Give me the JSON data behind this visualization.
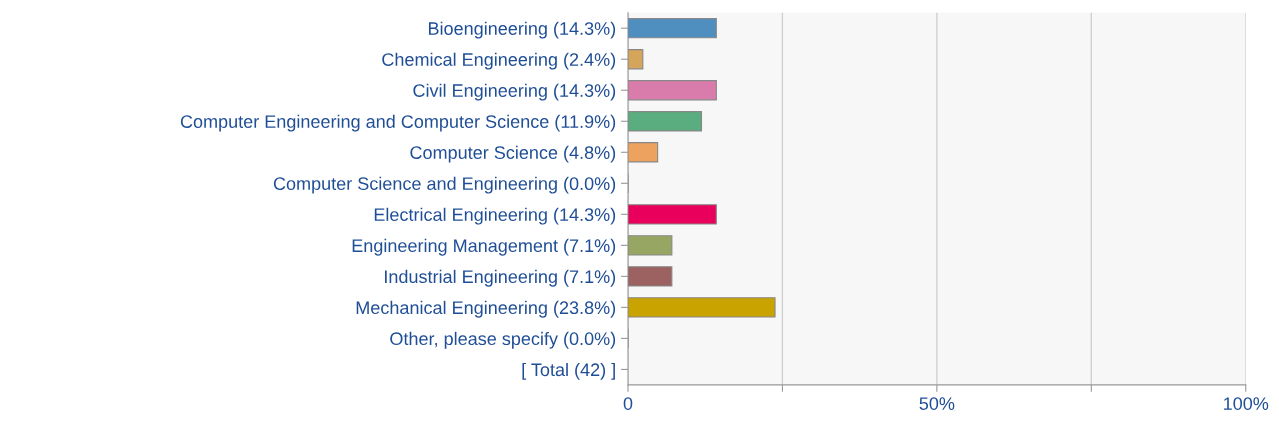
{
  "chart_data": {
    "type": "bar",
    "orientation": "horizontal",
    "categories": [
      "Bioengineering (14.3%)",
      "Chemical Engineering (2.4%)",
      "Civil Engineering (14.3%)",
      "Computer Engineering and Computer Science (11.9%)",
      "Computer Science (4.8%)",
      "Computer Science and Engineering (0.0%)",
      "Electrical Engineering (14.3%)",
      "Engineering Management (7.1%)",
      "Industrial Engineering (7.1%)",
      "Mechanical Engineering (23.8%)",
      "Other, please specify (0.0%)",
      "[ Total (42) ]"
    ],
    "values": [
      14.3,
      2.4,
      14.3,
      11.9,
      4.8,
      0.0,
      14.3,
      7.1,
      7.1,
      23.8,
      0.0,
      null
    ],
    "colors": [
      "#4f8fc0",
      "#d4a55a",
      "#d97cab",
      "#5aad7e",
      "#eda25f",
      null,
      "#e8005c",
      "#97a763",
      "#9c6262",
      "#c9a300",
      null,
      null
    ],
    "xlim": [
      0,
      100
    ],
    "xticks": [
      {
        "value": 0,
        "label": "0"
      },
      {
        "value": 25,
        "label": null
      },
      {
        "value": 50,
        "label": "50%"
      },
      {
        "value": 75,
        "label": null
      },
      {
        "value": 100,
        "label": "100%"
      }
    ],
    "grid": "x"
  }
}
